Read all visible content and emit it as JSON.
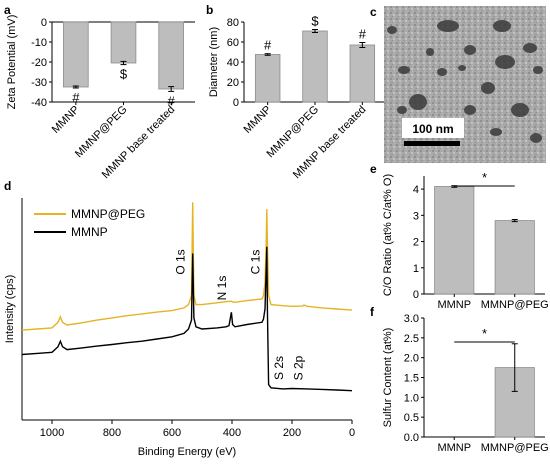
{
  "panel_labels": [
    "a",
    "b",
    "c",
    "d",
    "e",
    "f"
  ],
  "colors": {
    "bar": "#bdbdbd",
    "peg_spectrum": "#e6b422",
    "mmnp_spectrum": "#000000"
  },
  "chart_data": [
    {
      "id": "a",
      "type": "bar",
      "categories": [
        "MMNP",
        "MMNP@PEG",
        "MMNP base treated"
      ],
      "values": [
        -32.5,
        -20.5,
        -33.5
      ],
      "errors": [
        0.5,
        0.8,
        1.2
      ],
      "annotations": [
        "#",
        "$",
        "#"
      ],
      "xlabel": "",
      "ylabel": "Zeta Potential (mV)",
      "ylim": [
        -40,
        0
      ],
      "yticks": [
        0,
        -10,
        -20,
        -30,
        -40
      ]
    },
    {
      "id": "b",
      "type": "bar",
      "categories": [
        "MMNP",
        "MMNP@PEG",
        "MMNP base treated"
      ],
      "values": [
        47.5,
        71,
        57
      ],
      "errors": [
        0.8,
        1.5,
        2.5
      ],
      "annotations": [
        "#",
        "$",
        "#"
      ],
      "xlabel": "",
      "ylabel": "Diameter (nm)",
      "ylim": [
        0,
        80
      ],
      "yticks": [
        0,
        20,
        40,
        60,
        80
      ]
    },
    {
      "id": "c",
      "type": "image",
      "scalebar_label": "100 nm"
    },
    {
      "id": "d",
      "type": "line",
      "xlabel": "Binding Energy (eV)",
      "ylabel": "Intensity (cps)",
      "xlim": [
        1100,
        0
      ],
      "xticks": [
        1000,
        800,
        600,
        400,
        200,
        0
      ],
      "legend": "top-left",
      "series": [
        {
          "name": "MMNP@PEG",
          "x": [
            1100,
            1050,
            1000,
            980,
            972,
            965,
            950,
            900,
            850,
            800,
            750,
            700,
            650,
            600,
            560,
            545,
            535,
            531,
            527,
            520,
            500,
            450,
            420,
            402,
            398,
            390,
            350,
            300,
            295,
            290,
            286,
            284,
            282,
            278,
            270,
            230,
            200,
            165,
            160,
            150,
            100,
            50,
            0
          ],
          "y": [
            0.405,
            0.41,
            0.415,
            0.44,
            0.465,
            0.44,
            0.428,
            0.438,
            0.45,
            0.46,
            0.47,
            0.478,
            0.486,
            0.493,
            0.505,
            0.52,
            0.56,
            0.98,
            0.56,
            0.52,
            0.52,
            0.528,
            0.533,
            0.535,
            0.532,
            0.53,
            0.538,
            0.545,
            0.56,
            0.62,
            0.8,
            0.95,
            0.8,
            0.56,
            0.52,
            0.515,
            0.512,
            0.513,
            0.518,
            0.512,
            0.505,
            0.5,
            0.495
          ]
        },
        {
          "name": "MMNP",
          "x": [
            1100,
            1050,
            1000,
            980,
            972,
            965,
            950,
            900,
            850,
            800,
            750,
            700,
            650,
            600,
            560,
            545,
            535,
            531,
            527,
            520,
            500,
            450,
            420,
            410,
            402,
            398,
            390,
            350,
            300,
            295,
            290,
            286,
            284,
            282,
            278,
            270,
            230,
            200,
            150,
            100,
            50,
            0
          ],
          "y": [
            0.295,
            0.3,
            0.305,
            0.33,
            0.355,
            0.33,
            0.317,
            0.325,
            0.333,
            0.34,
            0.348,
            0.355,
            0.365,
            0.375,
            0.39,
            0.41,
            0.45,
            0.75,
            0.46,
            0.42,
            0.41,
            0.415,
            0.42,
            0.425,
            0.485,
            0.43,
            0.42,
            0.43,
            0.44,
            0.455,
            0.5,
            0.68,
            0.78,
            0.5,
            0.16,
            0.145,
            0.14,
            0.142,
            0.14,
            0.138,
            0.135,
            0.132
          ]
        }
      ],
      "peak_labels": [
        {
          "text": "O 1s",
          "x": 531
        },
        {
          "text": "N 1s",
          "x": 400
        },
        {
          "text": "C 1s",
          "x": 285
        },
        {
          "text": "S 2s",
          "x": 230
        },
        {
          "text": "S 2p",
          "x": 165
        }
      ]
    },
    {
      "id": "e",
      "type": "bar",
      "categories": [
        "MMNP",
        "MMNP@PEG"
      ],
      "values": [
        4.1,
        2.8
      ],
      "errors": [
        0.03,
        0.04
      ],
      "ylabel": "C/O Ratio (at% C/at% O)",
      "ylim": [
        0,
        4.5
      ],
      "yticks": [
        0,
        1,
        2,
        3,
        4
      ],
      "significance": "*"
    },
    {
      "id": "f",
      "type": "bar",
      "categories": [
        "MMNP",
        "MMNP@PEG"
      ],
      "values": [
        0,
        1.75
      ],
      "errors": [
        0,
        0.6
      ],
      "ylabel": "Sulfur Content (at%)",
      "ylim": [
        0,
        3.0
      ],
      "yticks": [
        0,
        0.5,
        1.0,
        1.5,
        2.0,
        2.5,
        3.0
      ],
      "ytick_labels": [
        "0.0",
        "0.5",
        "1.0",
        "1.5",
        "2.0",
        "2.5",
        "3.0"
      ],
      "significance": "*"
    }
  ]
}
